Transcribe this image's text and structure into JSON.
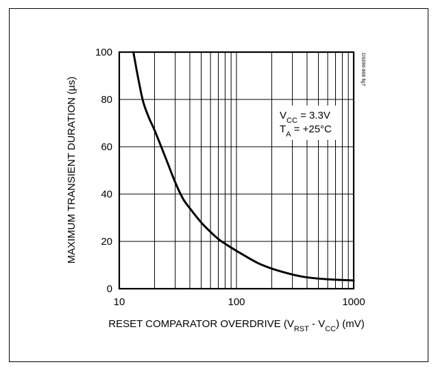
{
  "chart_data": {
    "type": "line",
    "title": "",
    "xlabel": {
      "prefix": "RESET COMPARATOR OVERDRIVE (V",
      "sub1": "RST",
      "mid": " - V",
      "sub2": "CC",
      "suffix": ") (mV)"
    },
    "ylabel": "MAXIMUM TRANSIENT DURATION (µs)",
    "xscale": "log",
    "xlim": [
      10,
      1000
    ],
    "ylim": [
      0,
      100
    ],
    "x_ticks": [
      "10",
      "100",
      "1000"
    ],
    "y_ticks": [
      "0",
      "20",
      "40",
      "60",
      "80",
      "100"
    ],
    "grid": true,
    "annotations": {
      "vcc": {
        "main": "V",
        "sub": "CC",
        "rest": " = 3.3V"
      },
      "ta": {
        "main": "T",
        "sub": "A",
        "rest": " = +25°C"
      }
    },
    "figure_id": "DS690-806 fig7",
    "series": [
      {
        "x": [
          13.2,
          14.5,
          16,
          18,
          20,
          25,
          30,
          35,
          40,
          50,
          60,
          70,
          80,
          100,
          150,
          200,
          300,
          400,
          600,
          1000
        ],
        "y": [
          100,
          89,
          79,
          72,
          67,
          55,
          45,
          38,
          34,
          28,
          24,
          21,
          19,
          16,
          11,
          8.5,
          6,
          4.8,
          4,
          3.5
        ]
      }
    ]
  }
}
